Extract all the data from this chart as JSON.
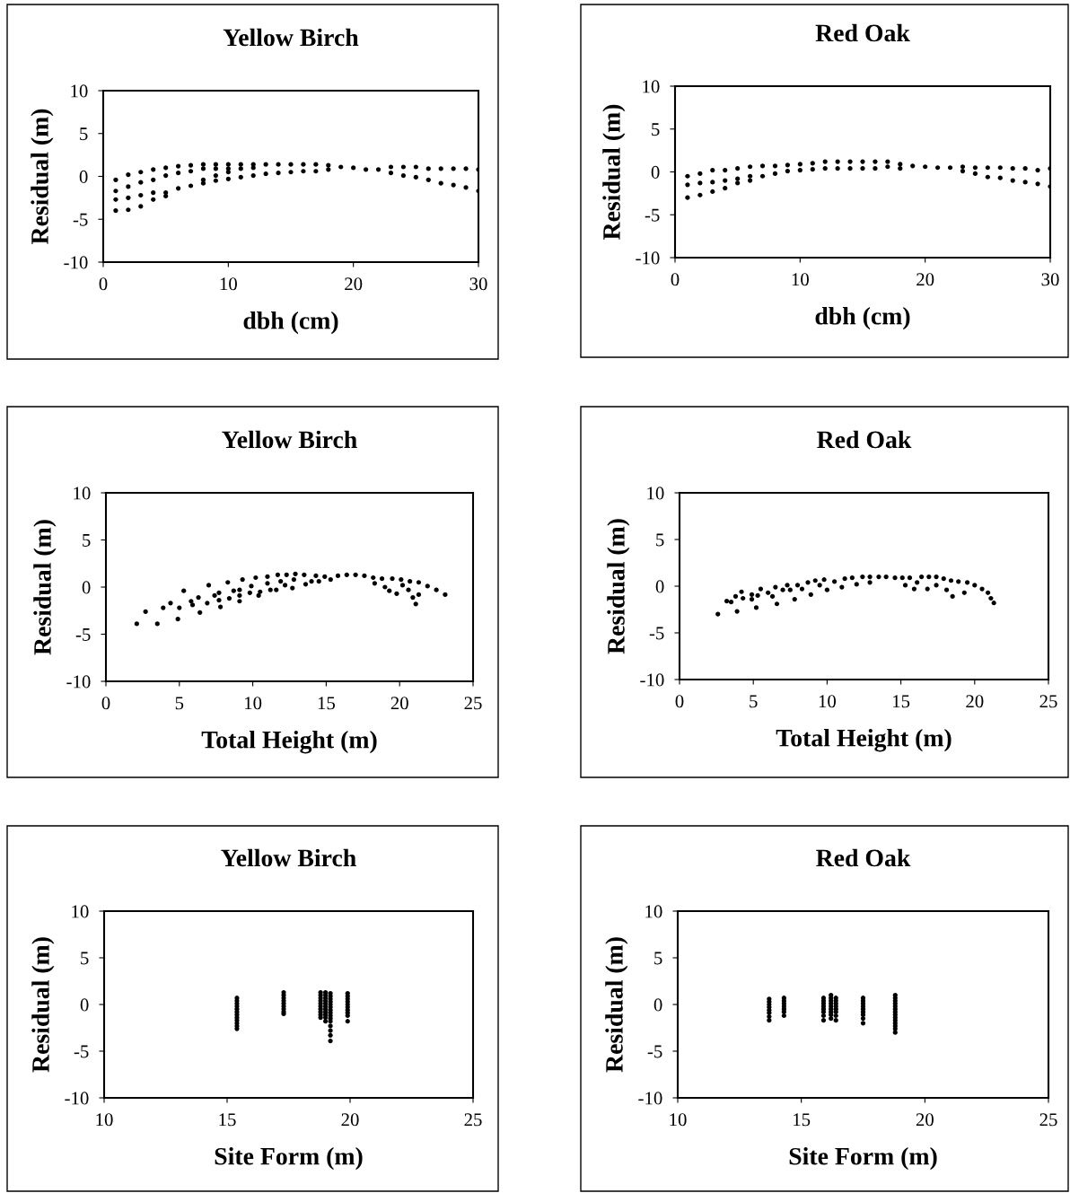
{
  "chart_data": [
    {
      "type": "scatter",
      "title": "Yellow Birch",
      "xlabel": "dbh (cm)",
      "ylabel": "Residual (m)",
      "color": "#000000",
      "marker": "circle",
      "grid": false,
      "xlim": [
        0,
        30
      ],
      "ylim": [
        -10,
        10
      ],
      "xticks": [
        0,
        10,
        20,
        30
      ],
      "yticks": [
        -10,
        -5,
        0,
        5,
        10
      ],
      "x": [
        1,
        1,
        1,
        1,
        2,
        2,
        2,
        2,
        3,
        3,
        3,
        3,
        4,
        4,
        4,
        4,
        5,
        5,
        5,
        5,
        6,
        6,
        6,
        7,
        7,
        7,
        8,
        8,
        8,
        8,
        9,
        9,
        9,
        9,
        10,
        10,
        10,
        10,
        11,
        11,
        11,
        12,
        12,
        12,
        13,
        13,
        14,
        14,
        15,
        15,
        16,
        16,
        17,
        17,
        18,
        18,
        19,
        20,
        21,
        22,
        23,
        23,
        24,
        24,
        25,
        25,
        26,
        26,
        27,
        27,
        28,
        28,
        29,
        29,
        30,
        30
      ],
      "values": [
        -0.4,
        -1.7,
        -2.7,
        -4.0,
        0.2,
        -1.2,
        -2.5,
        -3.9,
        0.5,
        -0.7,
        -2.2,
        -3.5,
        0.8,
        -0.4,
        -1.9,
        -2.7,
        1.0,
        0.1,
        -1.9,
        -2.3,
        1.2,
        0.4,
        -1.4,
        1.3,
        0.6,
        -1.1,
        1.4,
        0.9,
        -0.4,
        -0.8,
        1.4,
        0.9,
        0.1,
        -0.5,
        1.4,
        0.9,
        0.5,
        -0.3,
        1.4,
        0.9,
        -0.1,
        1.4,
        1.0,
        0.1,
        1.4,
        0.3,
        1.4,
        0.4,
        1.4,
        0.5,
        1.4,
        0.6,
        1.4,
        0.6,
        1.3,
        0.8,
        1.1,
        1.0,
        0.8,
        0.8,
        1.1,
        0.4,
        1.1,
        0.1,
        1.1,
        -0.1,
        0.9,
        -0.4,
        0.9,
        -0.8,
        0.9,
        -1.0,
        0.9,
        -1.3,
        0.8,
        -1.7
      ]
    },
    {
      "type": "scatter",
      "title": "Red Oak",
      "xlabel": "dbh (cm)",
      "ylabel": "Residual (m)",
      "color": "#000000",
      "marker": "circle",
      "grid": false,
      "xlim": [
        0,
        30
      ],
      "ylim": [
        -10,
        10
      ],
      "xticks": [
        0,
        10,
        20,
        30
      ],
      "yticks": [
        -10,
        -5,
        0,
        5,
        10
      ],
      "x": [
        1,
        1,
        1,
        2,
        2,
        2,
        3,
        3,
        3,
        4,
        4,
        4,
        5,
        5,
        5,
        6,
        6,
        6,
        7,
        7,
        8,
        8,
        9,
        9,
        10,
        10,
        11,
        11,
        12,
        12,
        13,
        13,
        14,
        14,
        15,
        15,
        16,
        16,
        17,
        17,
        18,
        18,
        19,
        20,
        21,
        22,
        23,
        23,
        24,
        24,
        25,
        25,
        26,
        26,
        27,
        27,
        28,
        28,
        29,
        29,
        30,
        30
      ],
      "values": [
        -0.5,
        -1.5,
        -3.0,
        -0.2,
        -1.3,
        -2.7,
        0.2,
        -1.2,
        -2.3,
        0.2,
        -1.0,
        -1.9,
        0.4,
        -0.8,
        -1.3,
        0.6,
        -0.5,
        -1.0,
        0.7,
        -0.5,
        0.7,
        -0.2,
        0.8,
        0.1,
        0.9,
        0.2,
        1.0,
        0.3,
        1.2,
        0.4,
        1.2,
        0.4,
        1.2,
        0.4,
        1.2,
        0.4,
        1.2,
        0.4,
        1.2,
        0.6,
        0.9,
        0.4,
        0.7,
        0.6,
        0.5,
        0.5,
        0.6,
        0.1,
        0.5,
        -0.2,
        0.5,
        -0.6,
        0.5,
        -0.7,
        0.4,
        -1.0,
        0.4,
        -1.2,
        0.2,
        -1.4,
        0.4,
        -1.7
      ]
    },
    {
      "type": "scatter",
      "title": "Yellow Birch",
      "xlabel": "Total Height (m)",
      "ylabel": "Residual (m)",
      "color": "#000000",
      "marker": "circle",
      "grid": false,
      "xlim": [
        0,
        25
      ],
      "ylim": [
        -10,
        10
      ],
      "xticks": [
        0,
        5,
        10,
        15,
        20,
        25
      ],
      "yticks": [
        -10,
        -5,
        0,
        5,
        10
      ],
      "x": [
        2.1,
        2.7,
        3.5,
        3.9,
        4.4,
        4.9,
        5.0,
        5.3,
        5.8,
        5.9,
        6.3,
        6.4,
        6.9,
        7.0,
        7.4,
        7.7,
        7.7,
        7.8,
        8.3,
        8.4,
        8.7,
        9.1,
        9.1,
        9.1,
        9.3,
        9.8,
        9.9,
        10.2,
        10.4,
        10.5,
        11.0,
        11.0,
        11.2,
        11.6,
        11.7,
        11.9,
        12.2,
        12.3,
        12.7,
        12.8,
        12.9,
        13.5,
        13.6,
        14.0,
        14.3,
        14.5,
        14.9,
        15.3,
        15.8,
        16.4,
        17.0,
        17.6,
        18.2,
        18.3,
        18.8,
        19.0,
        19.3,
        19.8,
        19.5,
        20.1,
        20.2,
        20.6,
        20.9,
        21.1,
        21.3,
        20.7,
        21.3,
        21.9,
        22.5,
        23.1
      ],
      "values": [
        -3.9,
        -2.6,
        -3.9,
        -2.2,
        -1.7,
        -3.4,
        -2.2,
        -0.4,
        -1.5,
        -1.9,
        -1.1,
        -2.7,
        -1.7,
        0.2,
        -0.9,
        -0.6,
        -1.4,
        -2.1,
        0.5,
        -1.2,
        -0.4,
        -0.3,
        -0.9,
        -1.5,
        0.8,
        -0.6,
        0.1,
        1.0,
        -0.9,
        -0.5,
        1.1,
        0.4,
        -0.3,
        -0.3,
        1.3,
        0.6,
        0.2,
        1.3,
        -0.1,
        0.8,
        1.4,
        1.3,
        0.3,
        0.6,
        1.2,
        0.6,
        1.1,
        0.8,
        1.2,
        1.3,
        1.3,
        1.2,
        1.0,
        0.4,
        0.9,
        0.0,
        -0.4,
        -0.7,
        0.9,
        0.8,
        0.2,
        -0.3,
        -1.1,
        -1.8,
        -0.8,
        0.6,
        0.5,
        0.1,
        -0.3,
        -0.8
      ]
    },
    {
      "type": "scatter",
      "title": "Red Oak",
      "xlabel": "Total Height (m)",
      "ylabel": "Residual (m)",
      "color": "#000000",
      "marker": "circle",
      "grid": false,
      "xlim": [
        0,
        25
      ],
      "ylim": [
        -10,
        10
      ],
      "xticks": [
        0,
        5,
        10,
        15,
        20,
        25
      ],
      "yticks": [
        -10,
        -5,
        0,
        5,
        10
      ],
      "x": [
        2.6,
        3.2,
        3.5,
        3.8,
        3.9,
        4.2,
        4.3,
        4.9,
        4.9,
        5.2,
        5.3,
        5.5,
        6.0,
        6.3,
        6.5,
        6.6,
        7.0,
        7.3,
        7.5,
        7.8,
        8.0,
        8.3,
        8.7,
        8.9,
        9.2,
        9.5,
        9.8,
        10.0,
        10.5,
        11.0,
        11.2,
        11.7,
        12.0,
        12.4,
        12.9,
        12.9,
        13.5,
        14.0,
        14.6,
        15.1,
        15.3,
        15.6,
        15.9,
        16.1,
        16.4,
        16.8,
        16.9,
        17.4,
        17.4,
        17.9,
        18.1,
        18.5,
        18.4,
        18.9,
        19.3,
        19.5,
        20.0,
        20.5,
        20.9,
        21.1,
        21.3
      ],
      "values": [
        -3.0,
        -1.6,
        -1.7,
        -1.1,
        -2.7,
        -0.6,
        -1.3,
        -0.9,
        -1.4,
        -2.3,
        -1.0,
        -0.3,
        -0.7,
        -1.1,
        -0.1,
        -1.9,
        -0.4,
        0.1,
        -0.4,
        -1.4,
        0.1,
        -0.3,
        0.4,
        -0.9,
        0.6,
        0.1,
        0.7,
        -0.4,
        0.5,
        -0.1,
        0.8,
        0.9,
        0.2,
        1.0,
        1.0,
        0.4,
        1.0,
        1.0,
        0.9,
        0.9,
        0.1,
        0.9,
        -0.3,
        0.4,
        1.0,
        -0.3,
        1.0,
        1.0,
        0.1,
        0.8,
        -0.4,
        -1.1,
        0.6,
        0.5,
        -0.7,
        0.4,
        0.1,
        -0.3,
        -0.7,
        -1.3,
        -1.8
      ]
    },
    {
      "type": "scatter",
      "title": "Yellow Birch",
      "xlabel": "Site Form (m)",
      "ylabel": "Residual (m)",
      "color": "#000000",
      "marker": "circle",
      "grid": false,
      "xlim": [
        10,
        25
      ],
      "ylim": [
        -10,
        10
      ],
      "xticks": [
        10,
        15,
        20,
        25
      ],
      "yticks": [
        -10,
        -5,
        0,
        5,
        10
      ],
      "x": [
        15.4,
        15.4,
        15.4,
        15.4,
        15.4,
        15.4,
        15.4,
        15.4,
        15.4,
        15.4,
        15.4,
        15.4,
        17.3,
        17.3,
        17.3,
        17.3,
        17.3,
        17.3,
        17.3,
        17.3,
        17.3,
        18.8,
        18.8,
        18.8,
        18.8,
        18.8,
        18.8,
        18.8,
        18.8,
        18.8,
        18.8,
        19.0,
        19.0,
        19.0,
        19.0,
        19.0,
        19.0,
        19.0,
        19.0,
        19.0,
        19.0,
        19.0,
        19.2,
        19.2,
        19.2,
        19.2,
        19.2,
        19.2,
        19.2,
        19.2,
        19.2,
        19.2,
        19.2,
        19.2,
        19.2,
        19.2,
        19.2,
        19.9,
        19.9,
        19.9,
        19.9,
        19.9,
        19.9,
        19.9,
        19.9,
        19.9,
        19.9
      ],
      "values": [
        0.7,
        0.4,
        0.1,
        -0.2,
        -0.5,
        -0.8,
        -1.1,
        -1.4,
        -1.7,
        -2.0,
        -2.3,
        -2.6,
        1.3,
        1.0,
        0.7,
        0.4,
        0.1,
        -0.2,
        -0.5,
        -0.8,
        -1.0,
        1.3,
        1.0,
        0.7,
        0.4,
        0.1,
        -0.2,
        -0.5,
        -0.8,
        -1.1,
        -1.4,
        1.3,
        1.0,
        0.7,
        0.4,
        0.1,
        -0.2,
        -0.5,
        -0.8,
        -1.1,
        -1.4,
        -1.8,
        1.2,
        0.9,
        0.6,
        0.3,
        0.0,
        -0.3,
        -0.6,
        -0.9,
        -1.2,
        -1.5,
        -1.8,
        -2.3,
        -2.8,
        -3.3,
        -3.9,
        1.2,
        0.9,
        0.6,
        0.3,
        0.0,
        -0.3,
        -0.6,
        -0.9,
        -1.2,
        -1.8
      ]
    },
    {
      "type": "scatter",
      "title": "Red Oak",
      "xlabel": "Site Form (m)",
      "ylabel": "Residual (m)",
      "color": "#000000",
      "marker": "circle",
      "grid": false,
      "xlim": [
        10,
        25
      ],
      "ylim": [
        -10,
        10
      ],
      "xticks": [
        10,
        15,
        20,
        25
      ],
      "yticks": [
        -10,
        -5,
        0,
        5,
        10
      ],
      "x": [
        13.7,
        13.7,
        13.7,
        13.7,
        13.7,
        13.7,
        13.7,
        13.7,
        14.3,
        14.3,
        14.3,
        14.3,
        14.3,
        14.3,
        14.3,
        15.9,
        15.9,
        15.9,
        15.9,
        15.9,
        15.9,
        15.9,
        15.9,
        16.2,
        16.2,
        16.2,
        16.2,
        16.2,
        16.2,
        16.2,
        16.2,
        16.2,
        16.4,
        16.4,
        16.4,
        16.4,
        16.4,
        16.4,
        16.4,
        16.4,
        17.5,
        17.5,
        17.5,
        17.5,
        17.5,
        17.5,
        17.5,
        17.5,
        17.5,
        18.8,
        18.8,
        18.8,
        18.8,
        18.8,
        18.8,
        18.8,
        18.8,
        18.8,
        18.8,
        18.8,
        18.8,
        18.8,
        18.8
      ],
      "values": [
        0.6,
        0.3,
        0.0,
        -0.3,
        -0.6,
        -0.9,
        -1.3,
        -1.7,
        0.7,
        0.4,
        0.1,
        -0.2,
        -0.5,
        -0.8,
        -1.2,
        0.7,
        0.4,
        0.1,
        -0.2,
        -0.5,
        -0.8,
        -1.2,
        -1.7,
        1.0,
        0.7,
        0.4,
        0.1,
        -0.2,
        -0.5,
        -0.8,
        -1.1,
        -1.5,
        0.7,
        0.4,
        0.1,
        -0.2,
        -0.5,
        -0.8,
        -1.2,
        -1.7,
        0.7,
        0.4,
        0.1,
        -0.2,
        -0.5,
        -0.8,
        -1.1,
        -1.5,
        -2.0,
        1.0,
        0.7,
        0.4,
        0.1,
        -0.2,
        -0.5,
        -0.8,
        -1.1,
        -1.4,
        -1.7,
        -2.0,
        -2.3,
        -2.6,
        -3.0
      ]
    }
  ]
}
